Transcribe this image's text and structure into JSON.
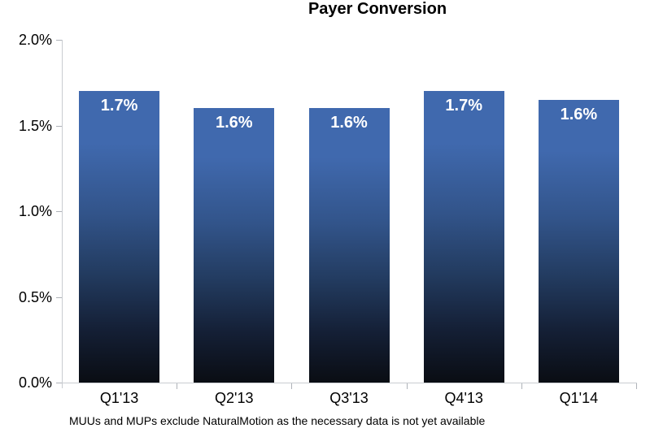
{
  "title": "Payer Conversion",
  "footnote": "MUUs and MUPs exclude NaturalMotion as the necessary data is not yet available",
  "chart_data": {
    "type": "bar",
    "title": "Payer Conversion",
    "categories": [
      "Q1'13",
      "Q2'13",
      "Q3'13",
      "Q4'13",
      "Q1'14"
    ],
    "values": [
      1.7,
      1.6,
      1.6,
      1.7,
      1.65
    ],
    "bar_labels": [
      "1.7%",
      "1.6%",
      "1.6%",
      "1.7%",
      "1.6%"
    ],
    "xlabel": "",
    "ylabel": "",
    "ylim": [
      0.0,
      2.0
    ],
    "y_tick_values": [
      2.0,
      1.5,
      1.0,
      0.5,
      0.0
    ],
    "y_tick_labels": [
      "2.0%",
      "1.5%",
      "1.0%",
      "0.5%",
      "0.0%"
    ],
    "grid": false,
    "legend_position": "none",
    "footnote": "MUUs and MUPs exclude NaturalMotion as the necessary data is not yet available",
    "colors": {
      "bar_gradient_top": "#4069AE",
      "bar_gradient_mid": "#32548A",
      "bar_gradient_low": "#233C61",
      "bar_gradient_bottom": "#0A0D13",
      "bar_label_text": "#FFFFFF",
      "axis_line": "#C9CCD1",
      "tick_mark": "#AEB2B8",
      "text": "#000000"
    }
  }
}
